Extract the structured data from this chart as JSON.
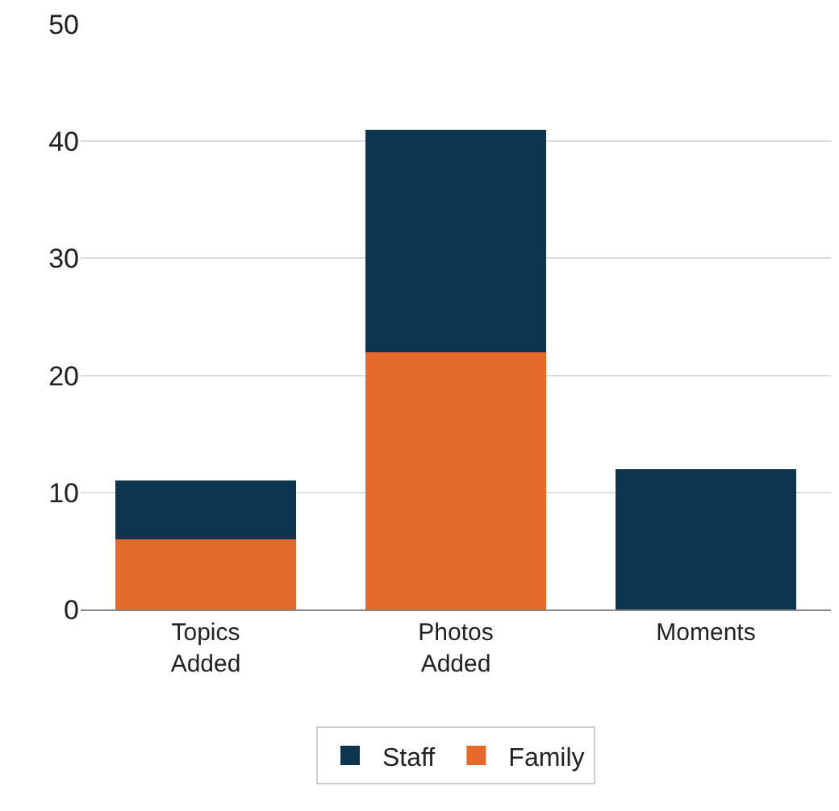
{
  "chart_data": {
    "type": "bar",
    "stacked": true,
    "categories": [
      "Topics Added",
      "Photos Added",
      "Moments"
    ],
    "series": [
      {
        "name": "Family",
        "color": "#e36a2b",
        "values": [
          6,
          22,
          0
        ]
      },
      {
        "name": "Staff",
        "color": "#0d3550",
        "values": [
          5,
          19,
          12
        ]
      }
    ],
    "ylim": [
      0,
      50
    ],
    "yticks": [
      0,
      10,
      20,
      30,
      40,
      50
    ],
    "grid": "y",
    "legend": "bottom"
  }
}
